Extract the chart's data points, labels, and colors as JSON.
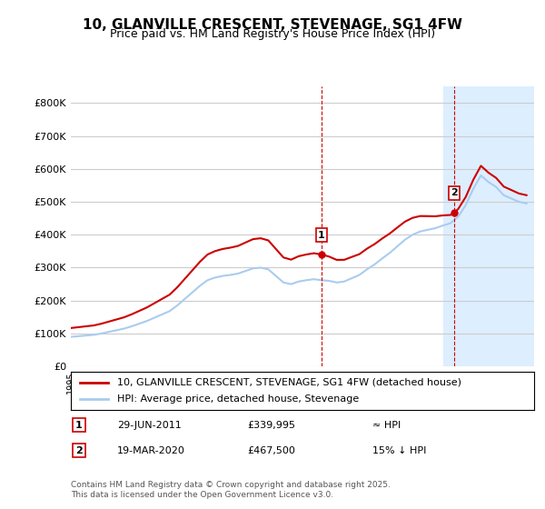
{
  "title": "10, GLANVILLE CRESCENT, STEVENAGE, SG1 4FW",
  "subtitle": "Price paid vs. HM Land Registry's House Price Index (HPI)",
  "legend_label1": "10, GLANVILLE CRESCENT, STEVENAGE, SG1 4FW (detached house)",
  "legend_label2": "HPI: Average price, detached house, Stevenage",
  "annotation1_label": "1",
  "annotation1_date": "29-JUN-2011",
  "annotation1_price": "£339,995",
  "annotation1_hpi": "≈ HPI",
  "annotation2_label": "2",
  "annotation2_date": "19-MAR-2020",
  "annotation2_price": "£467,500",
  "annotation2_hpi": "15% ↓ HPI",
  "footnote": "Contains HM Land Registry data © Crown copyright and database right 2025.\nThis data is licensed under the Open Government Licence v3.0.",
  "bg_color": "#ffffff",
  "plot_bg_color": "#ffffff",
  "grid_color": "#cccccc",
  "red_line_color": "#cc0000",
  "blue_line_color": "#aaccee",
  "shade_color": "#ddeeff",
  "ylim": [
    0,
    850000
  ],
  "yticks": [
    0,
    100000,
    200000,
    300000,
    400000,
    500000,
    600000,
    700000,
    800000
  ],
  "ytick_labels": [
    "£0",
    "£100K",
    "£200K",
    "£300K",
    "£400K",
    "£500K",
    "£600K",
    "£700K",
    "£800K"
  ],
  "hpi_data": {
    "years": [
      1995,
      1995.5,
      1996,
      1996.5,
      1997,
      1997.5,
      1998,
      1998.5,
      1999,
      1999.5,
      2000,
      2000.5,
      2001,
      2001.5,
      2002,
      2002.5,
      2003,
      2003.5,
      2004,
      2004.5,
      2005,
      2005.5,
      2006,
      2006.5,
      2007,
      2007.5,
      2008,
      2008.5,
      2009,
      2009.5,
      2010,
      2010.5,
      2011,
      2011.5,
      2012,
      2012.5,
      2013,
      2013.5,
      2014,
      2014.5,
      2015,
      2015.5,
      2016,
      2016.5,
      2017,
      2017.5,
      2018,
      2018.5,
      2019,
      2019.5,
      2020,
      2020.5,
      2021,
      2021.5,
      2022,
      2022.5,
      2023,
      2023.5,
      2024,
      2024.5,
      2025
    ],
    "values": [
      90000,
      92000,
      94000,
      96000,
      100000,
      105000,
      110000,
      115000,
      122000,
      130000,
      138000,
      148000,
      158000,
      168000,
      185000,
      205000,
      225000,
      245000,
      262000,
      270000,
      275000,
      278000,
      282000,
      290000,
      298000,
      300000,
      295000,
      275000,
      255000,
      250000,
      258000,
      262000,
      265000,
      262000,
      260000,
      255000,
      258000,
      268000,
      278000,
      295000,
      310000,
      328000,
      345000,
      365000,
      385000,
      400000,
      410000,
      415000,
      420000,
      428000,
      435000,
      455000,
      490000,
      540000,
      580000,
      560000,
      545000,
      520000,
      510000,
      500000,
      495000
    ]
  },
  "price_data": {
    "years": [
      1995.5,
      2000.3,
      2005.0,
      2007.0,
      2011.5,
      2020.25
    ],
    "values": [
      95000,
      140000,
      270000,
      300000,
      339995,
      467500
    ]
  },
  "sale1_year": 2011.5,
  "sale1_value": 339995,
  "sale2_year": 2020.25,
  "sale2_value": 467500,
  "shade_start": 2019.5,
  "shade_end": 2025.2,
  "xmin": 1995,
  "xmax": 2025.5
}
